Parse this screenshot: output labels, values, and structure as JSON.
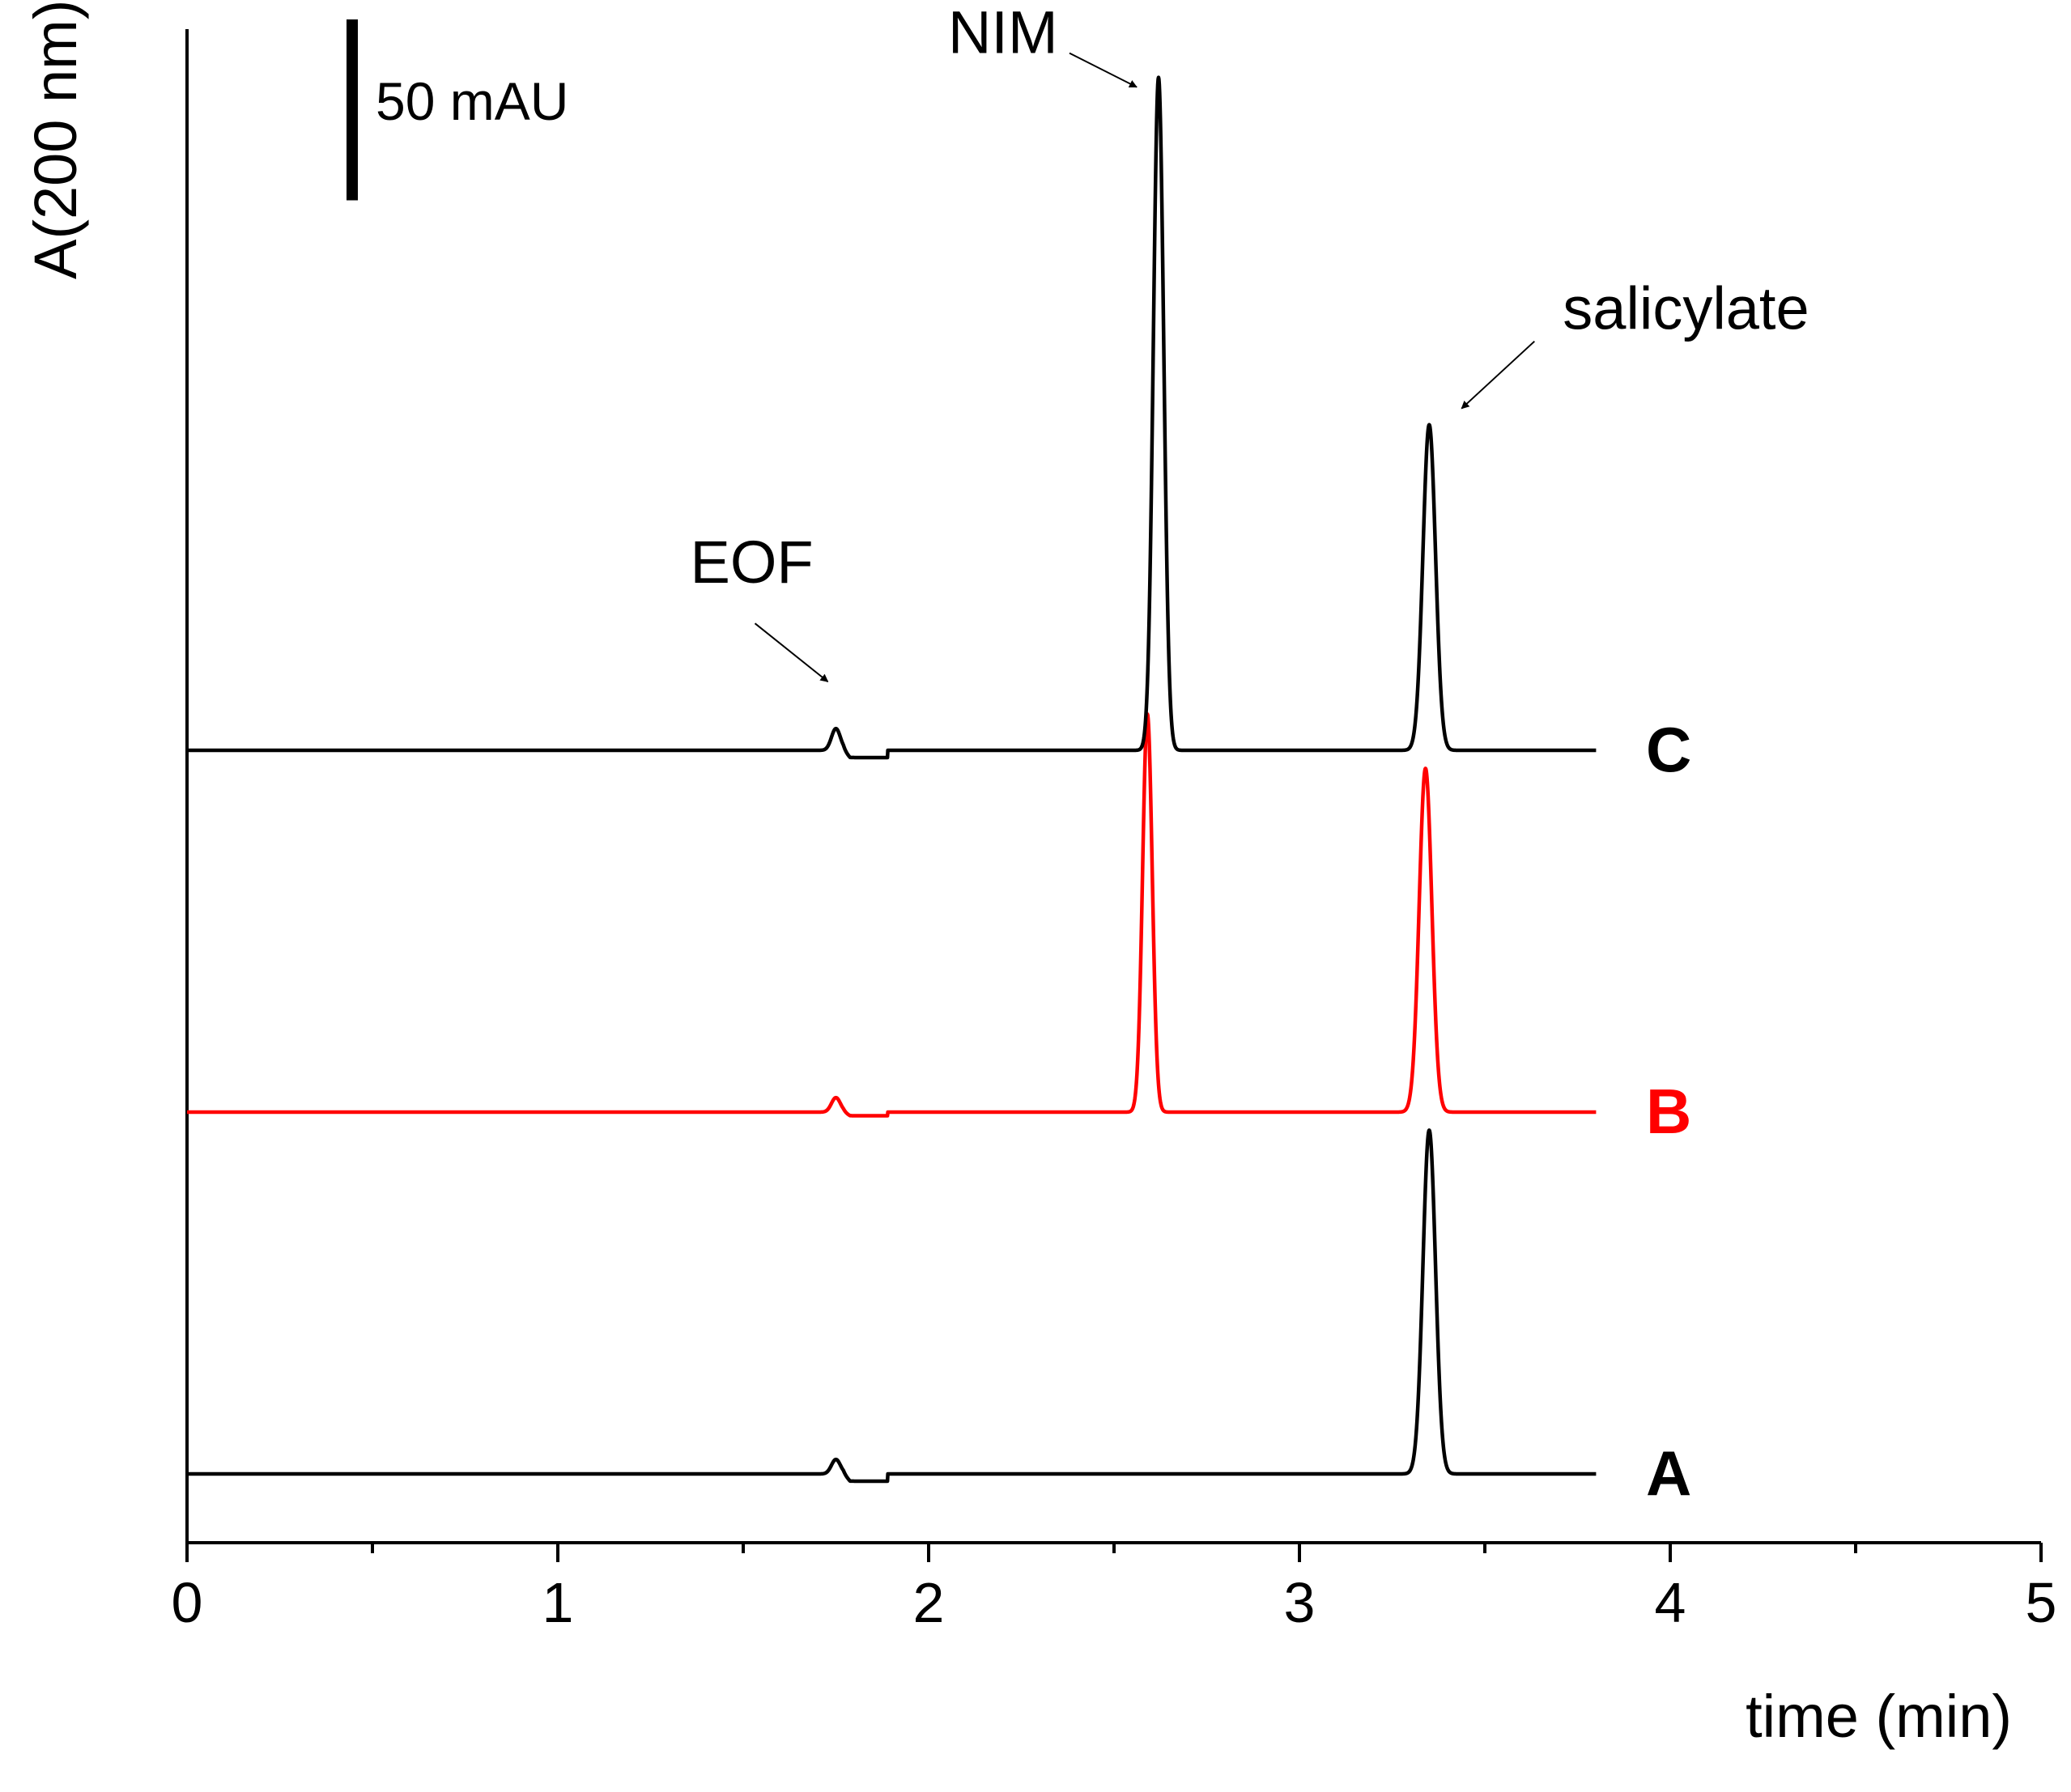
{
  "chart_data": {
    "type": "line",
    "title": "",
    "xlabel": "time (min)",
    "ylabel": "A(200 nm)",
    "xlim": [
      0,
      5
    ],
    "xticks": [
      0,
      1,
      2,
      3,
      4,
      5
    ],
    "x_minor_step": 0.5,
    "y_units": "mAU",
    "grid": false,
    "scale_bar": {
      "label": "50 mAU",
      "value": 50
    },
    "x_range": [
      0,
      3.8
    ],
    "series": [
      {
        "name": "A",
        "color": "#000000",
        "offset": 0,
        "peaks": [
          {
            "t": 1.75,
            "height": 4,
            "width": 0.012
          },
          {
            "t": 3.35,
            "height": 95,
            "width": 0.017
          }
        ],
        "dip": {
          "start": 1.77,
          "end": 1.89,
          "depth": 2
        }
      },
      {
        "name": "B",
        "color": "#ff0000",
        "offset": 100,
        "peaks": [
          {
            "t": 1.75,
            "height": 4,
            "width": 0.012
          },
          {
            "t": 2.59,
            "height": 110,
            "width": 0.013
          },
          {
            "t": 3.34,
            "height": 95,
            "width": 0.017
          }
        ],
        "dip": {
          "start": 1.77,
          "end": 1.89,
          "depth": 1
        }
      },
      {
        "name": "C",
        "color": "#000000",
        "offset": 200,
        "peaks": [
          {
            "t": 1.75,
            "height": 6,
            "width": 0.012
          },
          {
            "t": 2.62,
            "height": 186,
            "width": 0.014
          },
          {
            "t": 3.35,
            "height": 90,
            "width": 0.017
          }
        ],
        "dip": {
          "start": 1.77,
          "end": 1.89,
          "depth": 2
        }
      }
    ],
    "annotations": [
      {
        "text": "EOF",
        "t": 1.75,
        "series": "C"
      },
      {
        "text": "NIM",
        "t": 2.62,
        "series": "C"
      },
      {
        "text": "salicylate",
        "t": 3.35,
        "series": "C"
      }
    ]
  }
}
